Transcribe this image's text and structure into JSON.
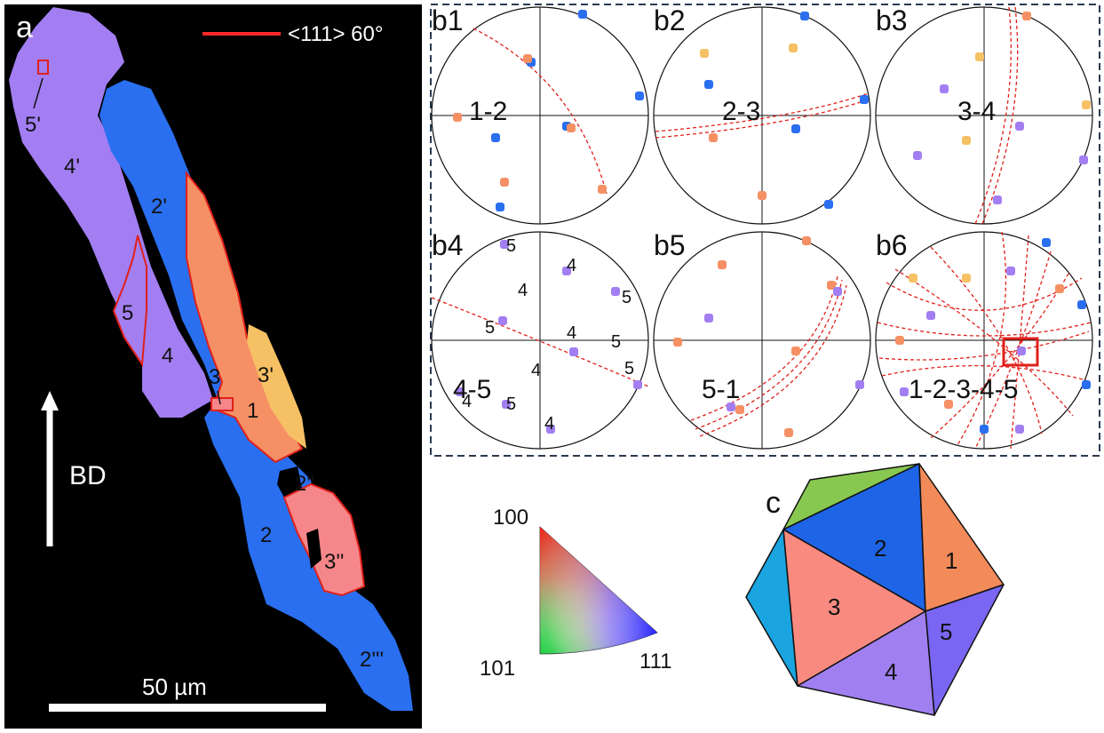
{
  "panel_a": {
    "label": "a",
    "legend_text": "<111> 60°",
    "legend_color": "#ff2a2a",
    "build_direction": "BD",
    "scale_bar": "50 µm",
    "grain_labels": [
      "5'",
      "4'",
      "2'",
      "5",
      "4",
      "3",
      "3'",
      "1",
      "2''",
      "2",
      "3''",
      "2'''"
    ]
  },
  "panel_b": {
    "plots": [
      {
        "tag": "b1",
        "pair": "1-2"
      },
      {
        "tag": "b2",
        "pair": "2-3"
      },
      {
        "tag": "b3",
        "pair": "3-4"
      },
      {
        "tag": "b4",
        "pair": "4-5"
      },
      {
        "tag": "b5",
        "pair": "5-1"
      },
      {
        "tag": "b6",
        "pair": "1-2-3-4-5"
      }
    ],
    "b4_point_labels": [
      "5",
      "4",
      "5",
      "4",
      "5",
      "4",
      "5",
      "4",
      "5",
      "4",
      "5",
      "4"
    ]
  },
  "ipf_key": {
    "corner_top": "100",
    "corner_left": "101",
    "corner_right": "111"
  },
  "panel_c": {
    "label": "c",
    "faces": [
      "2",
      "1",
      "3",
      "5",
      "4"
    ],
    "colors": {
      "green": "#88c850",
      "blue": "#1e64e6",
      "orange": "#f28a5a",
      "salmon": "#f88a80",
      "cyan": "#1aa4e0",
      "violet": "#7a66f2",
      "lavender": "#a080f0"
    }
  },
  "colors": {
    "grain_violet": "#a27ef2",
    "grain_blue": "#2a6fef",
    "grain_orange": "#f59064",
    "grain_salmon": "#f5878a",
    "grain_yellow": "#f6c064",
    "trace_red": "#e0201a",
    "frame_dash": "#2a3a50"
  }
}
